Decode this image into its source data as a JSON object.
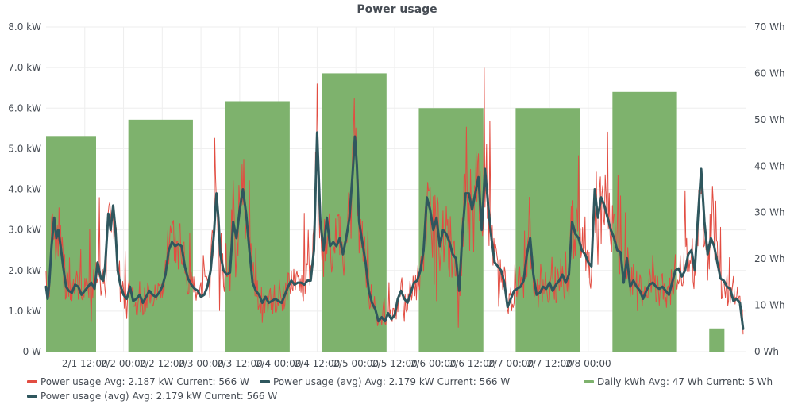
{
  "chart_data": {
    "type": "line",
    "title": "Power usage",
    "x_ticks": [
      "2/1 12:00",
      "2/2 00:00",
      "2/2 12:00",
      "2/3 00:00",
      "2/3 12:00",
      "2/4 00:00",
      "2/4 12:00",
      "2/5 00:00",
      "2/5 12:00",
      "2/6 00:00",
      "2/6 12:00",
      "2/7 00:00",
      "2/7 12:00",
      "2/8 00:00"
    ],
    "x_range": [
      "2/1 00:00",
      "2/8 01:00"
    ],
    "y_left": {
      "ticks": [
        "0 W",
        "1.0 kW",
        "2.0 kW",
        "3.0 kW",
        "4.0 kW",
        "5.0 kW",
        "6.0 kW",
        "7.0 kW",
        "8.0 kW"
      ],
      "range_kw": [
        0,
        8
      ]
    },
    "y_right": {
      "ticks": [
        "0 Wh",
        "10 Wh",
        "20 Wh",
        "30 Wh",
        "40 Wh",
        "50 Wh",
        "60 Wh",
        "70 Wh"
      ],
      "range_wh": [
        0,
        70
      ]
    },
    "grid": true,
    "legend_position": "bottom",
    "series": [
      {
        "name": "Daily kWh",
        "type": "bar",
        "axis": "right",
        "color": "#7eb26d",
        "avg": "47 Wh",
        "current": "5 Wh",
        "bars": [
          {
            "start_h": 0,
            "end_h": 15.5,
            "value": 46.5
          },
          {
            "start_h": 25.5,
            "end_h": 45.5,
            "value": 50
          },
          {
            "start_h": 55.5,
            "end_h": 75.5,
            "value": 54
          },
          {
            "start_h": 85.5,
            "end_h": 105.5,
            "value": 60
          },
          {
            "start_h": 115.5,
            "end_h": 135.5,
            "value": 52.5
          },
          {
            "start_h": 145.5,
            "end_h": 165.5,
            "value": 52.5
          },
          {
            "start_h": 175.5,
            "end_h": 195.5,
            "value": 56
          },
          {
            "start_h": 205.5,
            "end_h": 210.2,
            "value": 5
          }
        ]
      },
      {
        "name": "Power usage",
        "type": "line",
        "axis": "left",
        "color": "#e24d42",
        "avg": "2.187 kW",
        "current": "566 W"
      },
      {
        "name": "Power usage (avg)",
        "type": "line",
        "axis": "left",
        "color": "#2f575e",
        "avg": "2.179 kW",
        "current": "566 W",
        "points_h_kw": [
          [
            0,
            1.6
          ],
          [
            0.5,
            1.3
          ],
          [
            1,
            1.7
          ],
          [
            1.7,
            2.6
          ],
          [
            2.5,
            3.3
          ],
          [
            3.2,
            2.8
          ],
          [
            3.8,
            3.0
          ],
          [
            4.5,
            2.6
          ],
          [
            5.3,
            2.1
          ],
          [
            6.2,
            1.6
          ],
          [
            7,
            1.5
          ],
          [
            8,
            1.45
          ],
          [
            9,
            1.65
          ],
          [
            10,
            1.6
          ],
          [
            11,
            1.4
          ],
          [
            12,
            1.5
          ],
          [
            13,
            1.6
          ],
          [
            14,
            1.7
          ],
          [
            15,
            1.55
          ],
          [
            16,
            2.2
          ],
          [
            17,
            1.8
          ],
          [
            17.7,
            1.75
          ],
          [
            18.3,
            2.1
          ],
          [
            19.3,
            3.4
          ],
          [
            20,
            3.0
          ],
          [
            20.8,
            3.6
          ],
          [
            21.5,
            3.0
          ],
          [
            22.2,
            2.0
          ],
          [
            23,
            1.65
          ],
          [
            24,
            1.4
          ],
          [
            25,
            1.3
          ],
          [
            26,
            1.6
          ],
          [
            27,
            1.25
          ],
          [
            28,
            1.3
          ],
          [
            29,
            1.4
          ],
          [
            30,
            1.2
          ],
          [
            31,
            1.35
          ],
          [
            32,
            1.5
          ],
          [
            33,
            1.4
          ],
          [
            34,
            1.35
          ],
          [
            35,
            1.45
          ],
          [
            36,
            1.6
          ],
          [
            37,
            1.9
          ],
          [
            38,
            2.5
          ],
          [
            39,
            2.7
          ],
          [
            40,
            2.6
          ],
          [
            41,
            2.65
          ],
          [
            42,
            2.6
          ],
          [
            43,
            2.1
          ],
          [
            44,
            1.8
          ],
          [
            45,
            1.65
          ],
          [
            46,
            1.55
          ],
          [
            47,
            1.5
          ],
          [
            48,
            1.35
          ],
          [
            49,
            1.4
          ],
          [
            50,
            1.6
          ],
          [
            51,
            2.0
          ],
          [
            52,
            2.9
          ],
          [
            52.8,
            3.9
          ],
          [
            53.4,
            3.3
          ],
          [
            54,
            2.4
          ],
          [
            55,
            2.0
          ],
          [
            56,
            1.9
          ],
          [
            57,
            1.95
          ],
          [
            58,
            3.2
          ],
          [
            59,
            2.8
          ],
          [
            60,
            3.5
          ],
          [
            61,
            4.0
          ],
          [
            62,
            3.4
          ],
          [
            63,
            2.5
          ],
          [
            64,
            1.7
          ],
          [
            65,
            1.5
          ],
          [
            66,
            1.4
          ],
          [
            67,
            1.2
          ],
          [
            68,
            1.35
          ],
          [
            69,
            1.2
          ],
          [
            70,
            1.25
          ],
          [
            71,
            1.3
          ],
          [
            72,
            1.25
          ],
          [
            73,
            1.2
          ],
          [
            74,
            1.4
          ],
          [
            75,
            1.6
          ],
          [
            76,
            1.75
          ],
          [
            77,
            1.65
          ],
          [
            78,
            1.7
          ],
          [
            79,
            1.7
          ],
          [
            80,
            1.65
          ],
          [
            81,
            1.75
          ],
          [
            82,
            1.75
          ],
          [
            83,
            2.5
          ],
          [
            84,
            5.4
          ],
          [
            85,
            3.2
          ],
          [
            86,
            2.5
          ],
          [
            87,
            3.3
          ],
          [
            88,
            2.6
          ],
          [
            89,
            2.7
          ],
          [
            90,
            2.6
          ],
          [
            91,
            2.8
          ],
          [
            92,
            2.4
          ],
          [
            93,
            2.8
          ],
          [
            94,
            3.3
          ],
          [
            95,
            4.4
          ],
          [
            95.7,
            5.3
          ],
          [
            96.3,
            4.6
          ],
          [
            97,
            3.2
          ],
          [
            98,
            2.7
          ],
          [
            99,
            2.2
          ],
          [
            100,
            1.5
          ],
          [
            101,
            1.2
          ],
          [
            102,
            1.05
          ],
          [
            103,
            0.75
          ],
          [
            104,
            0.85
          ],
          [
            105,
            0.75
          ],
          [
            106,
            0.95
          ],
          [
            107,
            0.8
          ],
          [
            108,
            0.9
          ],
          [
            109,
            1.3
          ],
          [
            110,
            1.5
          ],
          [
            111,
            1.3
          ],
          [
            112,
            1.2
          ],
          [
            113,
            1.45
          ],
          [
            114,
            1.7
          ],
          [
            115,
            1.75
          ],
          [
            116,
            2.0
          ],
          [
            117,
            2.5
          ],
          [
            118,
            3.8
          ],
          [
            119,
            3.5
          ],
          [
            120,
            3.0
          ],
          [
            121,
            3.3
          ],
          [
            122,
            2.6
          ],
          [
            123,
            3.0
          ],
          [
            124,
            2.9
          ],
          [
            125,
            2.7
          ],
          [
            126,
            2.4
          ],
          [
            127,
            2.3
          ],
          [
            128,
            1.5
          ],
          [
            129,
            2.9
          ],
          [
            130,
            3.9
          ],
          [
            131,
            3.9
          ],
          [
            132,
            3.5
          ],
          [
            133,
            3.9
          ],
          [
            134,
            4.3
          ],
          [
            135,
            3.0
          ],
          [
            136,
            4.5
          ],
          [
            137,
            3.6
          ],
          [
            138,
            2.8
          ],
          [
            139,
            2.2
          ],
          [
            140,
            2.1
          ],
          [
            141,
            2.0
          ],
          [
            142,
            1.7
          ],
          [
            143,
            1.1
          ],
          [
            144,
            1.3
          ],
          [
            145,
            1.5
          ],
          [
            146,
            1.55
          ],
          [
            147,
            1.6
          ],
          [
            148,
            1.75
          ],
          [
            149,
            2.4
          ],
          [
            150,
            2.8
          ],
          [
            151,
            1.9
          ],
          [
            152,
            1.4
          ],
          [
            153,
            1.45
          ],
          [
            154,
            1.6
          ],
          [
            155,
            1.55
          ],
          [
            156,
            1.7
          ],
          [
            157,
            1.5
          ],
          [
            158,
            1.65
          ],
          [
            159,
            1.75
          ],
          [
            160,
            1.9
          ],
          [
            161,
            1.7
          ],
          [
            162,
            1.9
          ],
          [
            163,
            3.2
          ],
          [
            164,
            2.9
          ],
          [
            165,
            2.8
          ],
          [
            166,
            2.5
          ],
          [
            167,
            2.4
          ],
          [
            168,
            2.2
          ],
          [
            169,
            2.1
          ],
          [
            170,
            4.0
          ],
          [
            171,
            3.3
          ],
          [
            172,
            3.8
          ],
          [
            173,
            3.6
          ],
          [
            174,
            3.3
          ],
          [
            175,
            3.0
          ],
          [
            176,
            2.8
          ],
          [
            177,
            2.5
          ],
          [
            178,
            2.45
          ],
          [
            179,
            1.7
          ],
          [
            180,
            2.3
          ],
          [
            181,
            1.6
          ],
          [
            182,
            1.75
          ],
          [
            183,
            1.6
          ],
          [
            184,
            1.5
          ],
          [
            185,
            1.3
          ],
          [
            186,
            1.5
          ],
          [
            187,
            1.65
          ],
          [
            188,
            1.7
          ],
          [
            189,
            1.6
          ],
          [
            190,
            1.55
          ],
          [
            191,
            1.6
          ],
          [
            192,
            1.5
          ],
          [
            193,
            1.4
          ],
          [
            194,
            1.7
          ],
          [
            195,
            2.0
          ],
          [
            196,
            2.05
          ],
          [
            197,
            1.85
          ],
          [
            198,
            2.0
          ],
          [
            199,
            2.4
          ],
          [
            200,
            2.5
          ],
          [
            201,
            2.0
          ],
          [
            202,
            3.3
          ],
          [
            203,
            4.5
          ],
          [
            204,
            3.2
          ],
          [
            205,
            2.4
          ],
          [
            206,
            2.8
          ],
          [
            207,
            2.6
          ],
          [
            208,
            2.2
          ],
          [
            209,
            1.8
          ],
          [
            210,
            1.75
          ],
          [
            211,
            1.6
          ],
          [
            212,
            1.55
          ],
          [
            213,
            1.25
          ],
          [
            214,
            1.3
          ],
          [
            215,
            1.2
          ],
          [
            216,
            0.56
          ]
        ]
      }
    ]
  }
}
